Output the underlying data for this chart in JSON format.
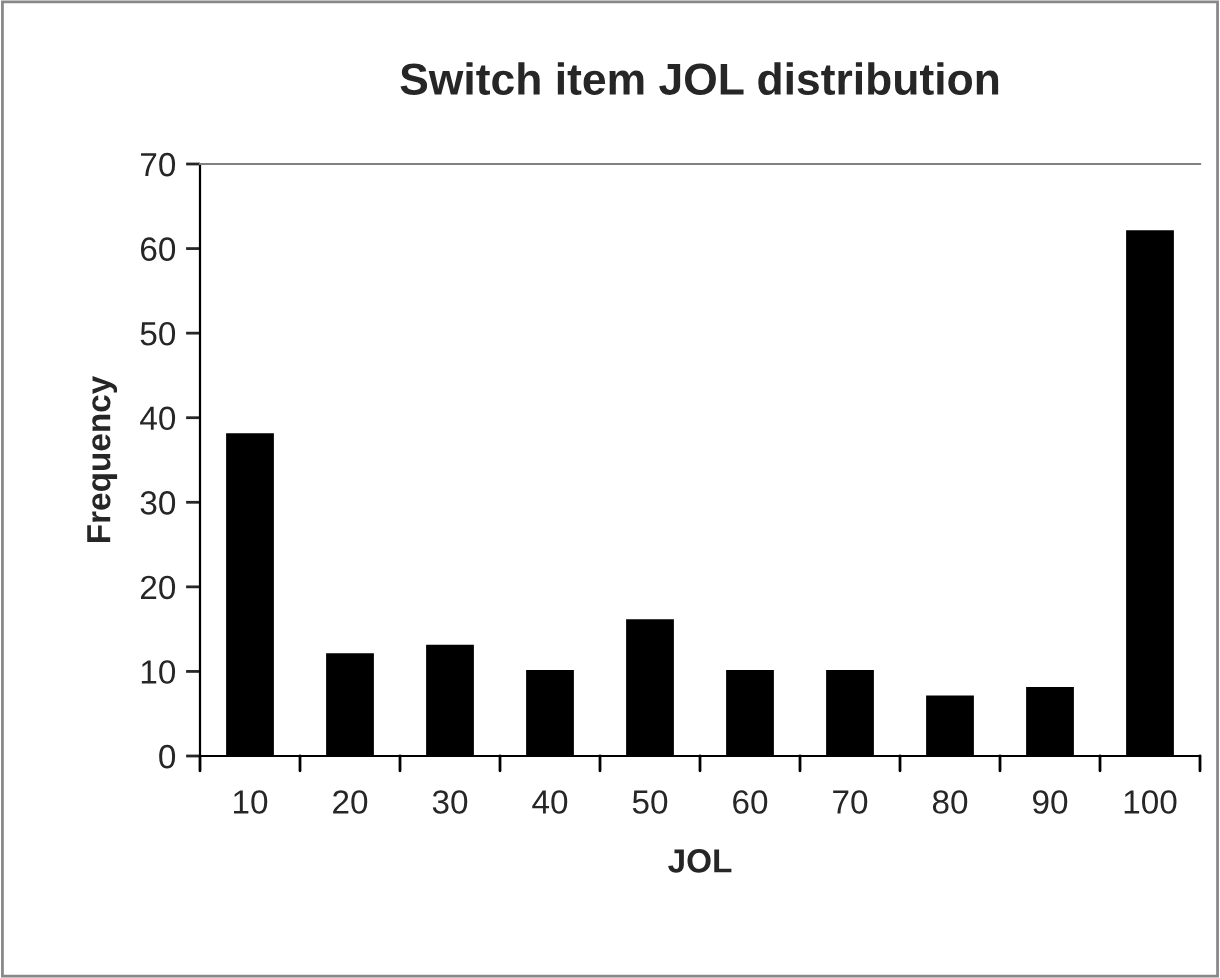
{
  "chart_data": {
    "type": "bar",
    "title": "Switch item JOL distribution",
    "xlabel": "JOL",
    "ylabel": "Frequency",
    "categories": [
      "10",
      "20",
      "30",
      "40",
      "50",
      "60",
      "70",
      "80",
      "90",
      "100"
    ],
    "values": [
      38,
      12,
      13,
      10,
      16,
      10,
      10,
      7,
      8,
      62
    ],
    "color": "#000000",
    "ylim": [
      0,
      70
    ],
    "yticks": [
      0,
      10,
      20,
      30,
      40,
      50,
      60,
      70
    ],
    "grid": false,
    "legend": false
  }
}
